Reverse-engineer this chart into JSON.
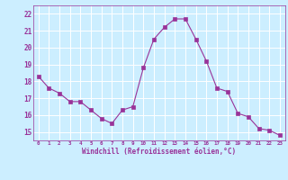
{
  "x": [
    0,
    1,
    2,
    3,
    4,
    5,
    6,
    7,
    8,
    9,
    10,
    11,
    12,
    13,
    14,
    15,
    16,
    17,
    18,
    19,
    20,
    21,
    22,
    23
  ],
  "y": [
    18.3,
    17.6,
    17.3,
    16.8,
    16.8,
    16.3,
    15.8,
    15.5,
    16.3,
    16.5,
    18.8,
    20.5,
    21.2,
    21.7,
    21.7,
    20.5,
    19.2,
    17.6,
    17.4,
    16.1,
    15.9,
    15.2,
    15.1,
    14.8
  ],
  "line_color": "#993399",
  "marker": "s",
  "marker_size": 2.2,
  "bg_color": "#cceeff",
  "grid_color": "#ffffff",
  "xlabel": "Windchill (Refroidissement éolien,°C)",
  "xlabel_color": "#993399",
  "tick_color": "#993399",
  "ylim": [
    14.5,
    22.5
  ],
  "xlim": [
    -0.5,
    23.5
  ],
  "yticks": [
    15,
    16,
    17,
    18,
    19,
    20,
    21,
    22
  ],
  "xticks": [
    0,
    1,
    2,
    3,
    4,
    5,
    6,
    7,
    8,
    9,
    10,
    11,
    12,
    13,
    14,
    15,
    16,
    17,
    18,
    19,
    20,
    21,
    22,
    23
  ],
  "figsize": [
    3.2,
    2.0
  ],
  "dpi": 100
}
